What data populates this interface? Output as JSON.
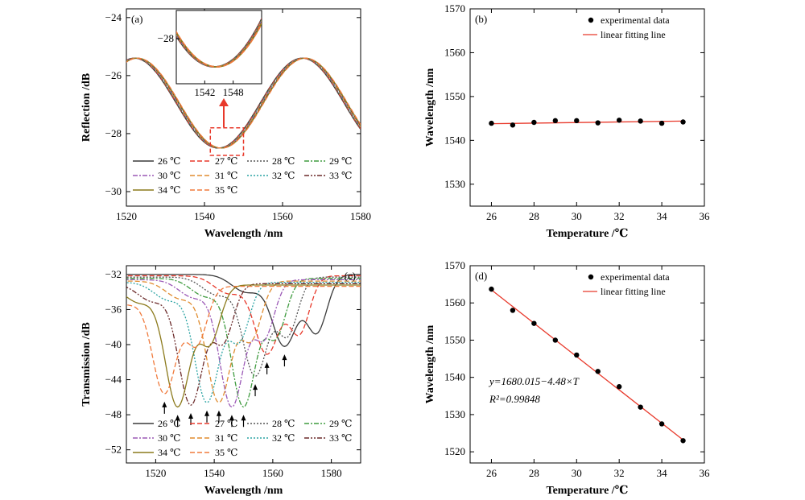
{
  "chart_data": [
    {
      "panel_label": "(a)",
      "type": "line",
      "xlabel": "Wavelength /nm",
      "ylabel": "Reflection /dB",
      "xlim": [
        1520,
        1580
      ],
      "ylim": [
        -30.5,
        -23.7
      ],
      "xticks": [
        1520,
        1540,
        1560,
        1580
      ],
      "yticks": [
        -30,
        -28,
        -26,
        -24
      ],
      "series": [
        {
          "name": "26 ℃",
          "color": "#3a3a3a",
          "dash": "solid",
          "shift": 0.0
        },
        {
          "name": "27 ℃",
          "color": "#e8392b",
          "dash": "dash",
          "shift": 0.1
        },
        {
          "name": "28 ℃",
          "color": "#555555",
          "dash": "dot",
          "shift": 0.2
        },
        {
          "name": "29 ℃",
          "color": "#3f9b3f",
          "dash": "dashdot",
          "shift": 0.3
        },
        {
          "name": "30 ℃",
          "color": "#9b59b6",
          "dash": "dashdot",
          "shift": 0.4
        },
        {
          "name": "31 ℃",
          "color": "#e08c2f",
          "dash": "dash",
          "shift": 0.5
        },
        {
          "name": "32 ℃",
          "color": "#2aa3a3",
          "dash": "dot",
          "shift": 0.6
        },
        {
          "name": "33 ℃",
          "color": "#6b2a2a",
          "dash": "dashdotdot",
          "shift": 0.7
        },
        {
          "name": "34 ℃",
          "color": "#8c7a1c",
          "dash": "solid",
          "shift": 0.8
        },
        {
          "name": "35 ℃",
          "color": "#f07a3c",
          "dash": "dash",
          "shift": 0.9
        }
      ],
      "inset": {
        "xticks": [
          1542,
          1548
        ],
        "ytick": -28,
        "xlim": [
          1536,
          1554
        ],
        "ylim": [
          -28.8,
          -27.5
        ]
      }
    },
    {
      "panel_label": "(b)",
      "type": "scatter",
      "xlabel": "Temperature /℃",
      "ylabel": "Wavelength /nm",
      "xlim": [
        25,
        36
      ],
      "ylim": [
        1525,
        1570
      ],
      "xticks": [
        26,
        28,
        30,
        32,
        34,
        36
      ],
      "yticks": [
        1530,
        1540,
        1550,
        1560,
        1570
      ],
      "x": [
        26,
        27,
        28,
        29,
        30,
        31,
        32,
        33,
        34,
        35
      ],
      "y": [
        1543.9,
        1543.5,
        1544.1,
        1544.5,
        1544.5,
        1544.0,
        1544.6,
        1544.4,
        1543.9,
        1544.2
      ],
      "fit": {
        "x": [
          26,
          35
        ],
        "y": [
          1543.8,
          1544.4
        ]
      },
      "legend": [
        "experimental data",
        "linear fitting line"
      ]
    },
    {
      "panel_label": "(c)",
      "type": "line",
      "xlabel": "Wavelength /nm",
      "ylabel": "Transmission /dB",
      "xlim": [
        1510,
        1590
      ],
      "ylim": [
        -53.5,
        -31
      ],
      "xticks": [
        1520,
        1540,
        1560,
        1580
      ],
      "yticks": [
        -52,
        -48,
        -44,
        -40,
        -36,
        -32
      ],
      "series": [
        {
          "name": "26 ℃",
          "color": "#3a3a3a",
          "dash": "solid",
          "dip": 1564,
          "depth": -40.1
        },
        {
          "name": "27 ℃",
          "color": "#e8392b",
          "dash": "dash",
          "dip": 1558,
          "depth": -41.0
        },
        {
          "name": "28 ℃",
          "color": "#555555",
          "dash": "dot",
          "dip": 1554,
          "depth": -43.5
        },
        {
          "name": "29 ℃",
          "color": "#3f9b3f",
          "dash": "dashdot",
          "dip": 1550,
          "depth": -47.0
        },
        {
          "name": "30 ℃",
          "color": "#9b59b6",
          "dash": "dashdot",
          "dip": 1546,
          "depth": -47.0
        },
        {
          "name": "31 ℃",
          "color": "#e08c2f",
          "dash": "dash",
          "dip": 1541.6,
          "depth": -46.5
        },
        {
          "name": "32 ℃",
          "color": "#2aa3a3",
          "dash": "dot",
          "dip": 1537.5,
          "depth": -46.5
        },
        {
          "name": "33 ℃",
          "color": "#6b2a2a",
          "dash": "dashdotdot",
          "dip": 1532,
          "depth": -46.8
        },
        {
          "name": "34 ℃",
          "color": "#8c7a1c",
          "dash": "solid",
          "dip": 1527.5,
          "depth": -47.0
        },
        {
          "name": "35 ℃",
          "color": "#f07a3c",
          "dash": "dash",
          "dip": 1523,
          "depth": -45.5
        }
      ]
    },
    {
      "panel_label": "(d)",
      "type": "scatter",
      "xlabel": "Temperature /℃",
      "ylabel": "Wavelength /nm",
      "xlim": [
        25,
        36
      ],
      "ylim": [
        1517,
        1570
      ],
      "xticks": [
        26,
        28,
        30,
        32,
        34,
        36
      ],
      "yticks": [
        1520,
        1530,
        1540,
        1550,
        1560,
        1570
      ],
      "x": [
        26,
        27,
        28,
        29,
        30,
        31,
        32,
        33,
        34,
        35
      ],
      "y": [
        1563.7,
        1558.0,
        1554.5,
        1550.0,
        1546.0,
        1541.6,
        1537.5,
        1532.0,
        1527.5,
        1523.0
      ],
      "fit": {
        "x": [
          26,
          35
        ],
        "y": [
          1563.5,
          1523.2
        ]
      },
      "legend": [
        "experimental data",
        "linear fitting line"
      ],
      "equation": "y=1680.015−4.48×T",
      "r2": "R²=0.99848"
    }
  ]
}
